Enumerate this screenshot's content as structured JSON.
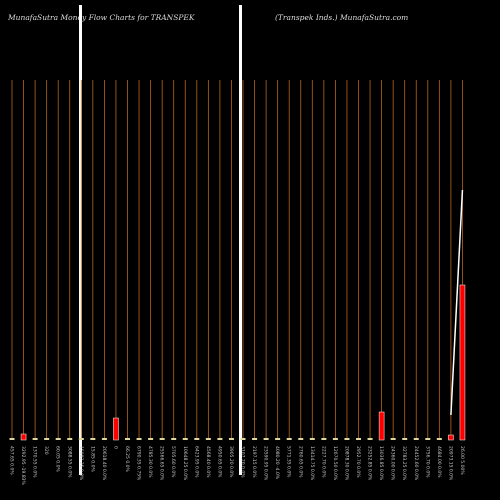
{
  "chart_data": {
    "type": "bar",
    "title": "MunafaSutra  Money Flow  Charts for TRANSPEK",
    "subtitle": "(Transpek Inds.) MunafaSutra.com",
    "categories": [
      "457.65 0.0%",
      "3292.95 -19.83%",
      "1370.55 0.0%",
      "320",
      "60.05 0.0%",
      "3088.55 0.0%",
      "15982.25 0.0%",
      "15.85 0.0%",
      "20618.40 0.0%",
      "0",
      "66.25 0.0%",
      "6790.35 0.75%",
      "4785.30 0.0%",
      "25566.65 0.0%",
      "5705.60 0.0%",
      "10648.25 0.0%",
      "6423.95 0.0%",
      "4568.40 0.0%",
      "4950.65 0.0%",
      "3905.20 0.0%",
      "3107.20 0.0%",
      "2197.15 0.0%",
      "23590.95 0.0%",
      "4080.20 -4.0%",
      "5771.35 0.0%",
      "2760.65 0.0%",
      "13414.75 0.0%",
      "2227.70 0.0%",
      "12670.50 0.0%",
      "20878.30 0.0%",
      "2952.70 0.0%",
      "23252.85 0.0%",
      "13036.85 0.0%",
      "24360.00 0.0%",
      "32783.25 0.0%",
      "24452.60 0.0%",
      "3756.70 0.0%",
      "4684.00 0.0%",
      "20973.15 0.0%",
      "26.00 5.00%"
    ],
    "values": [
      2,
      6,
      2,
      2,
      2,
      2,
      2,
      2,
      2,
      22,
      2,
      2,
      2,
      2,
      2,
      2,
      2,
      2,
      2,
      2,
      2,
      2,
      2,
      2,
      2,
      2,
      2,
      2,
      2,
      2,
      2,
      2,
      28,
      2,
      2,
      2,
      2,
      2,
      5,
      155
    ],
    "colors": [
      "#ddd8a0",
      "#ff0000",
      "#ddd8a0",
      "#ddd8a0",
      "#ddd8a0",
      "#ddd8a0",
      "#ddd8a0",
      "#ddd8a0",
      "#ddd8a0",
      "#ff0000",
      "#ddd8a0",
      "#ddd8a0",
      "#ddd8a0",
      "#ddd8a0",
      "#ddd8a0",
      "#ddd8a0",
      "#ddd8a0",
      "#ddd8a0",
      "#ddd8a0",
      "#ddd8a0",
      "#ddd8a0",
      "#ddd8a0",
      "#ddd8a0",
      "#ddd8a0",
      "#ddd8a0",
      "#ddd8a0",
      "#ddd8a0",
      "#ddd8a0",
      "#ddd8a0",
      "#ddd8a0",
      "#ddd8a0",
      "#ddd8a0",
      "#ff0000",
      "#ddd8a0",
      "#ddd8a0",
      "#ddd8a0",
      "#ddd8a0",
      "#ddd8a0",
      "#ff0000",
      "#ff0000"
    ],
    "line_values": [
      null,
      null,
      null,
      null,
      null,
      null,
      null,
      null,
      null,
      null,
      null,
      null,
      null,
      null,
      null,
      null,
      null,
      null,
      null,
      null,
      null,
      null,
      null,
      null,
      null,
      null,
      null,
      null,
      null,
      null,
      null,
      null,
      null,
      null,
      null,
      null,
      null,
      null,
      25,
      250
    ],
    "line_color": "#ffffff",
    "grid_color": "#b5651d",
    "ylim": [
      0,
      360
    ]
  }
}
